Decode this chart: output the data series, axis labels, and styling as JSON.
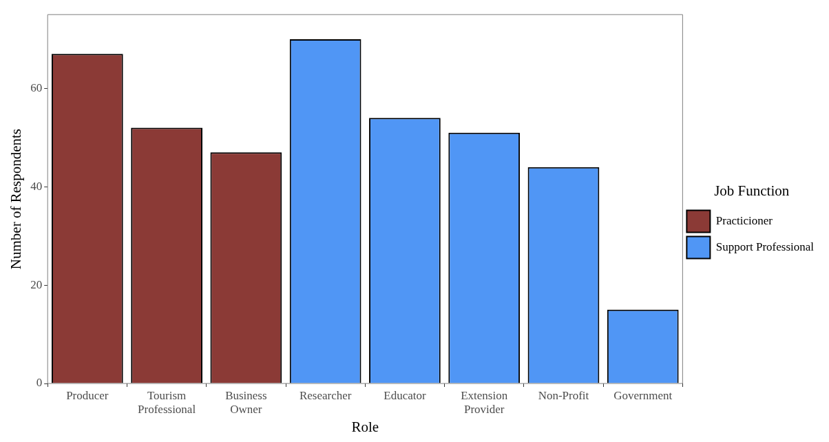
{
  "chart_data": {
    "type": "bar",
    "xlabel": "Role",
    "ylabel": "Number of Respondents",
    "legend_title": "Job Function",
    "categories": [
      "Producer",
      "Tourism Professional",
      "Business Owner",
      "Researcher",
      "Educator",
      "Extension Provider",
      "Non-Profit",
      "Government"
    ],
    "series": [
      {
        "name": "Practicioner",
        "color": "#8b3a36",
        "values": [
          67,
          52,
          47,
          null,
          null,
          null,
          null,
          null
        ]
      },
      {
        "name": "Support Professional",
        "color": "#5096f5",
        "values": [
          null,
          null,
          null,
          70,
          54,
          51,
          44,
          15
        ]
      }
    ],
    "ylim": [
      0,
      75
    ],
    "yticks": [
      0,
      20,
      40,
      60
    ],
    "grid": false,
    "legend": "right"
  }
}
